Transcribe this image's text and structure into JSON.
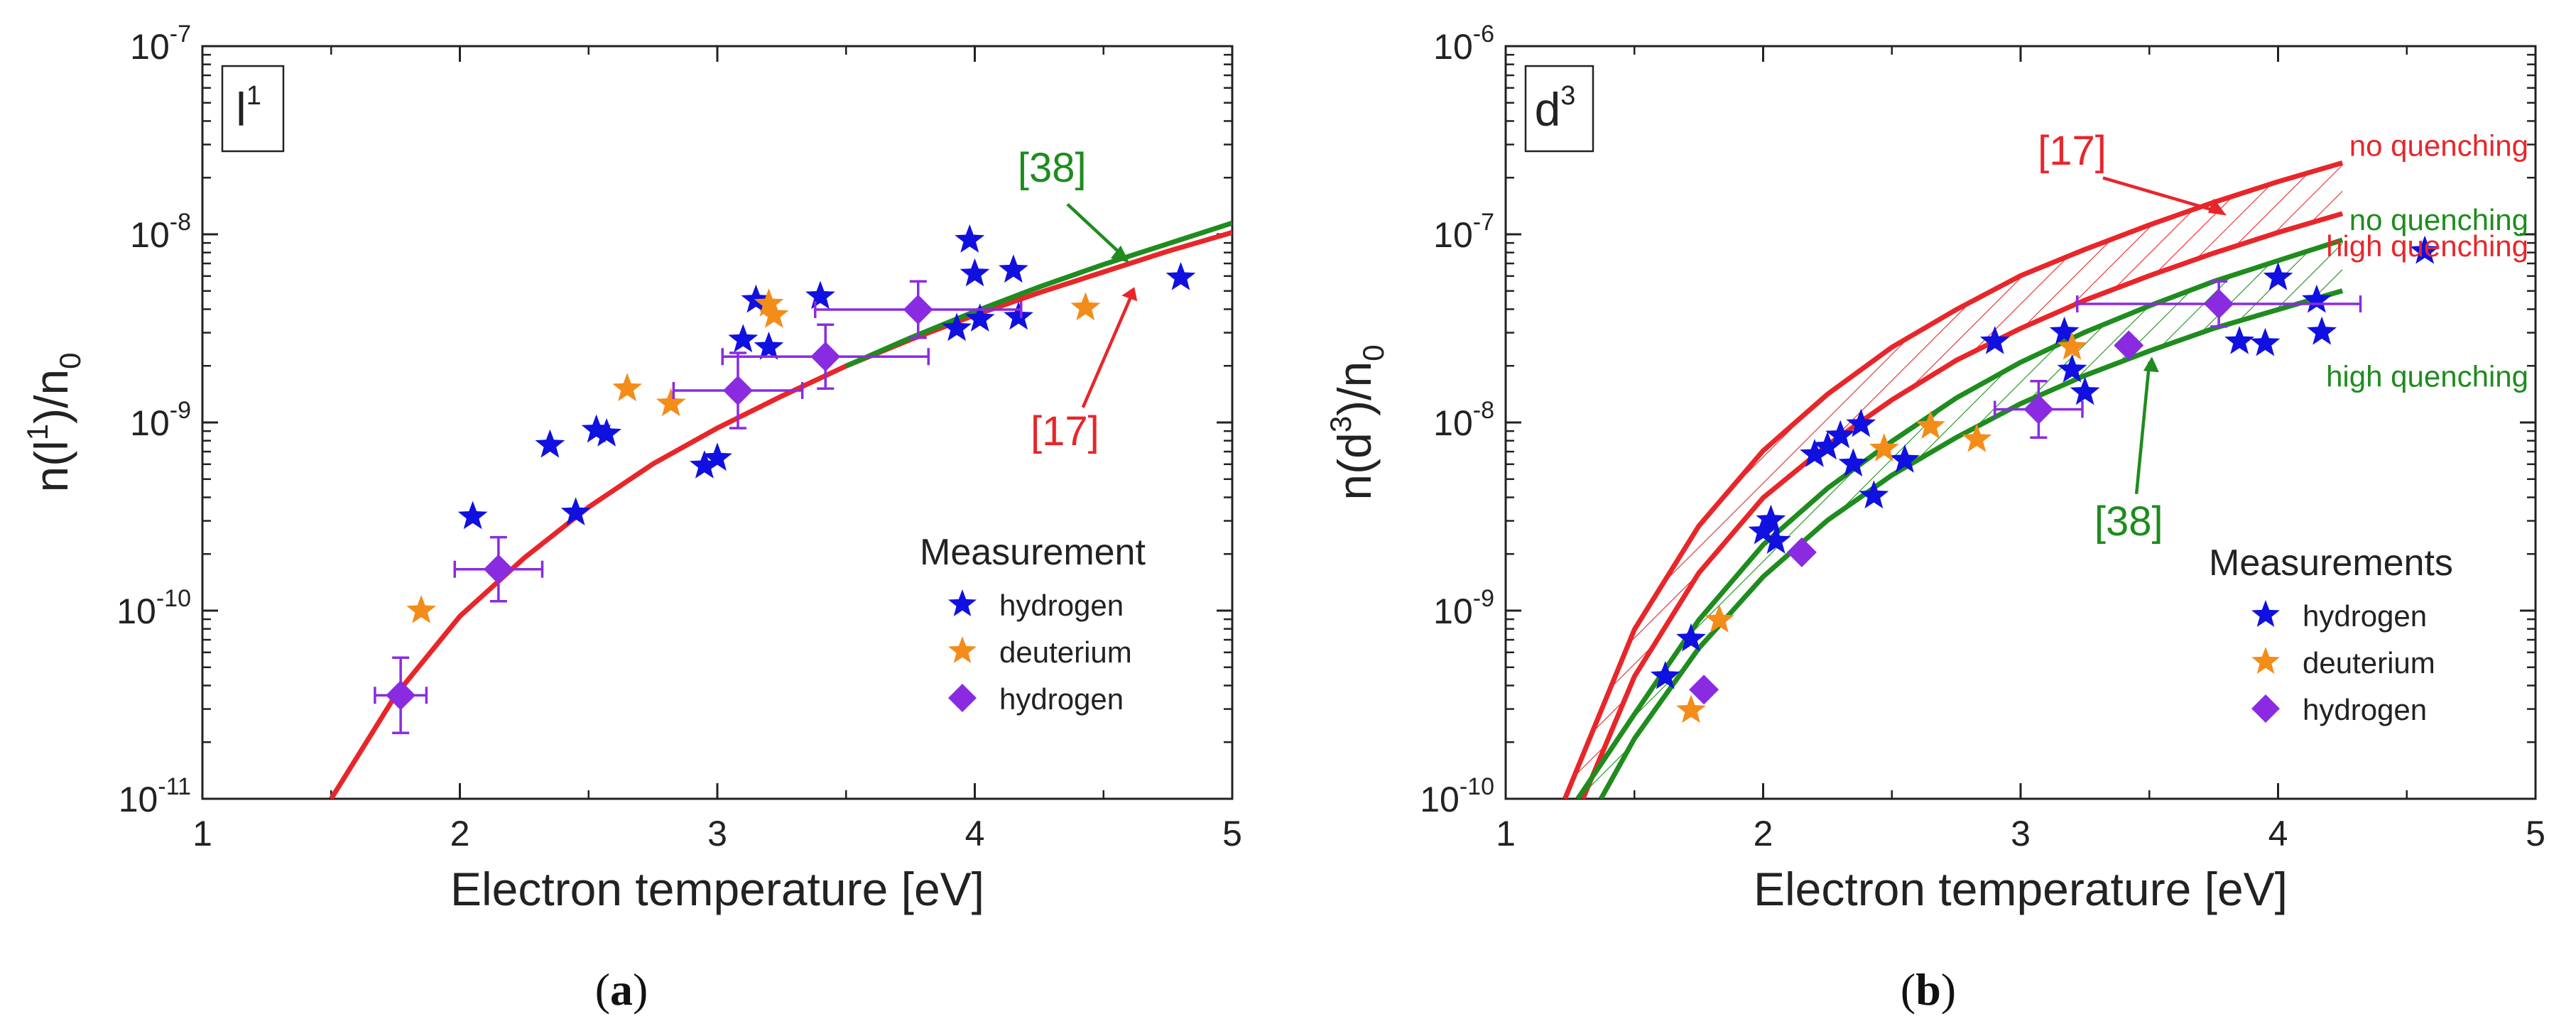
{
  "chart_data": [
    {
      "type": "scatter",
      "panel": "a",
      "caption": "a",
      "label_main": "l",
      "label_sup": "1",
      "xlabel": "Electron temperature [eV]",
      "ylabel": {
        "pre": "n(l",
        "sup": "1",
        "mid": ")/n",
        "sub": "0"
      },
      "xlim": [
        1,
        5
      ],
      "ylim_exp": [
        -11,
        -7
      ],
      "yscale": "log",
      "xticks": [
        "1",
        "2",
        "3",
        "4",
        "5"
      ],
      "yticks": [
        {
          "base": "10",
          "exp": "-11"
        },
        {
          "base": "10",
          "exp": "-10"
        },
        {
          "base": "10",
          "exp": "-9"
        },
        {
          "base": "10",
          "exp": "-8"
        },
        {
          "base": "10",
          "exp": "-7"
        }
      ],
      "colors": {
        "model17": "#e8262a",
        "model38": "#1e8c1e",
        "hydrogen": "#1010e0",
        "deuterium": "#f48c1a",
        "hydrogen_diamond": "#8a2be2"
      },
      "curves": [
        {
          "name": "[17]",
          "color": "#e8262a",
          "x": [
            1.5,
            1.75,
            2.0,
            2.25,
            2.5,
            2.75,
            3.0,
            3.25,
            3.5,
            3.75,
            4.0,
            4.25,
            4.5,
            4.75,
            5.0
          ],
          "y_log": [
            -11.0,
            -10.45,
            -10.03,
            -9.72,
            -9.45,
            -9.22,
            -9.03,
            -8.86,
            -8.7,
            -8.56,
            -8.43,
            -8.31,
            -8.2,
            -8.09,
            -7.99
          ]
        },
        {
          "name": "[38]",
          "color": "#1e8c1e",
          "x": [
            3.5,
            3.75,
            4.0,
            4.25,
            4.5,
            4.75,
            5.0
          ],
          "y_log": [
            -8.7,
            -8.55,
            -8.41,
            -8.28,
            -8.16,
            -8.05,
            -7.94
          ]
        }
      ],
      "curve_labels": [
        {
          "text": "[17]",
          "color": "#e8262a"
        },
        {
          "text": "[38]",
          "color": "#1e8c1e"
        }
      ],
      "series": [
        {
          "name": "hydrogen",
          "marker": "star",
          "color": "#1010e0",
          "x": [
            2.05,
            2.35,
            2.45,
            2.53,
            2.57,
            2.95,
            3.0,
            3.1,
            3.15,
            3.2,
            3.4,
            3.93,
            3.98,
            4.0,
            4.02,
            4.15,
            4.17,
            4.8
          ],
          "y_log": [
            -9.5,
            -9.12,
            -9.48,
            -9.04,
            -9.06,
            -9.23,
            -9.19,
            -8.56,
            -8.35,
            -8.6,
            -8.33,
            -8.5,
            -8.03,
            -8.21,
            -8.45,
            -8.19,
            -8.44,
            -8.23
          ]
        },
        {
          "name": "deuterium",
          "marker": "star",
          "color": "#f48c1a",
          "x": [
            1.85,
            2.65,
            2.82,
            3.2,
            3.22,
            4.43
          ],
          "y_log": [
            -10.0,
            -8.82,
            -8.9,
            -8.37,
            -8.43,
            -8.39
          ]
        },
        {
          "name": "hydrogen",
          "marker": "diamond",
          "color": "#8a2be2",
          "x": [
            1.77,
            2.15,
            3.08,
            3.42,
            3.78
          ],
          "y_log": [
            -10.45,
            -9.78,
            -8.83,
            -8.65,
            -8.4
          ],
          "xerr": [
            0.1,
            0.17,
            0.25,
            0.4,
            0.4
          ],
          "yerr_log": [
            0.2,
            0.17,
            0.2,
            0.17,
            0.15
          ]
        }
      ],
      "legend": {
        "title": "Measurement",
        "position": "bottom-right",
        "entries": [
          "hydrogen",
          "deuterium",
          "hydrogen"
        ]
      }
    },
    {
      "type": "scatter",
      "panel": "b",
      "caption": "b",
      "label_main": "d",
      "label_sup": "3",
      "xlabel": "Electron temperature [eV]",
      "ylabel": {
        "pre": "n(d",
        "sup": "3",
        "mid": ")/n",
        "sub": "0"
      },
      "xlim": [
        1,
        5
      ],
      "ylim_exp": [
        -10,
        -6
      ],
      "yscale": "log",
      "xticks": [
        "1",
        "2",
        "3",
        "4",
        "5"
      ],
      "yticks": [
        {
          "base": "10",
          "exp": "-10"
        },
        {
          "base": "10",
          "exp": "-9"
        },
        {
          "base": "10",
          "exp": "-8"
        },
        {
          "base": "10",
          "exp": "-7"
        },
        {
          "base": "10",
          "exp": "-6"
        }
      ],
      "bands": [
        {
          "name": "[17]",
          "color": "#e8262a",
          "upper": {
            "label": "no quenching",
            "x": [
              1.23,
              1.5,
              1.75,
              2.0,
              2.25,
              2.5,
              2.75,
              3.0,
              3.25,
              3.5,
              3.75,
              4.0,
              4.25
            ],
            "y_log": [
              -10.0,
              -9.1,
              -8.55,
              -8.15,
              -7.85,
              -7.6,
              -7.4,
              -7.22,
              -7.08,
              -6.95,
              -6.83,
              -6.72,
              -6.62
            ]
          },
          "lower": {
            "label": "high quenching",
            "x": [
              1.3,
              1.5,
              1.75,
              2.0,
              2.25,
              2.5,
              2.75,
              3.0,
              3.25,
              3.5,
              3.75,
              4.0,
              4.25
            ],
            "y_log": [
              -10.0,
              -9.35,
              -8.8,
              -8.4,
              -8.12,
              -7.88,
              -7.67,
              -7.5,
              -7.35,
              -7.22,
              -7.1,
              -6.99,
              -6.89
            ]
          }
        },
        {
          "name": "[38]",
          "color": "#1e8c1e",
          "upper": {
            "label": "no quenching",
            "x": [
              1.28,
              1.5,
              1.75,
              2.0,
              2.25,
              2.5,
              2.75,
              3.0,
              3.25,
              3.5,
              3.75,
              4.0,
              4.25
            ],
            "y_log": [
              -10.0,
              -9.55,
              -9.05,
              -8.65,
              -8.35,
              -8.1,
              -7.87,
              -7.68,
              -7.52,
              -7.38,
              -7.25,
              -7.14,
              -7.03
            ]
          },
          "lower": {
            "label": "high quenching",
            "x": [
              1.37,
              1.5,
              1.75,
              2.0,
              2.25,
              2.5,
              2.75,
              3.0,
              3.25,
              3.5,
              3.75,
              4.0,
              4.25
            ],
            "y_log": [
              -10.0,
              -9.68,
              -9.2,
              -8.82,
              -8.52,
              -8.28,
              -8.08,
              -7.9,
              -7.75,
              -7.62,
              -7.5,
              -7.4,
              -7.3
            ]
          }
        }
      ],
      "curve_labels": [
        {
          "text": "[17]",
          "color": "#e8262a"
        },
        {
          "text": "[38]",
          "color": "#1e8c1e"
        }
      ],
      "band_labels": [
        {
          "text": "no quenching",
          "color": "#e8262a"
        },
        {
          "text": "high quenching",
          "color": "#e8262a"
        },
        {
          "text": "no quenching",
          "color": "#1e8c1e"
        },
        {
          "text": "high quenching",
          "color": "#1e8c1e"
        }
      ],
      "series": [
        {
          "name": "hydrogen",
          "marker": "star",
          "color": "#1010e0",
          "x": [
            1.62,
            1.72,
            2.0,
            2.03,
            2.05,
            2.2,
            2.25,
            2.3,
            2.35,
            2.38,
            2.43,
            2.55,
            2.9,
            3.17,
            3.2,
            3.25,
            3.85,
            3.95,
            4.0,
            4.15,
            4.17,
            4.57
          ],
          "y_log": [
            -9.35,
            -9.15,
            -8.58,
            -8.52,
            -8.63,
            -8.17,
            -8.13,
            -8.07,
            -8.22,
            -8.01,
            -8.39,
            -8.2,
            -7.57,
            -7.52,
            -7.72,
            -7.84,
            -7.57,
            -7.58,
            -7.23,
            -7.35,
            -7.52,
            -7.09
          ]
        },
        {
          "name": "deuterium",
          "marker": "star",
          "color": "#f48c1a",
          "x": [
            1.72,
            1.83,
            2.47,
            2.65,
            2.83,
            3.2
          ],
          "y_log": [
            -9.53,
            -9.05,
            -8.14,
            -8.02,
            -8.09,
            -7.6
          ]
        },
        {
          "name": "hydrogen",
          "marker": "diamond",
          "color": "#8a2be2",
          "x": [
            1.77,
            2.15,
            3.07,
            3.42,
            3.77
          ],
          "y_log": [
            -9.42,
            -8.69,
            -7.93,
            -7.59,
            -7.37
          ],
          "xerr": [
            0.0,
            0.0,
            0.17,
            0.0,
            0.55
          ],
          "yerr_log": [
            0.0,
            0.0,
            0.15,
            0.0,
            0.12
          ]
        }
      ],
      "legend": {
        "title": "Measurements",
        "position": "bottom-right",
        "entries": [
          "hydrogen",
          "deuterium",
          "hydrogen"
        ]
      }
    }
  ]
}
